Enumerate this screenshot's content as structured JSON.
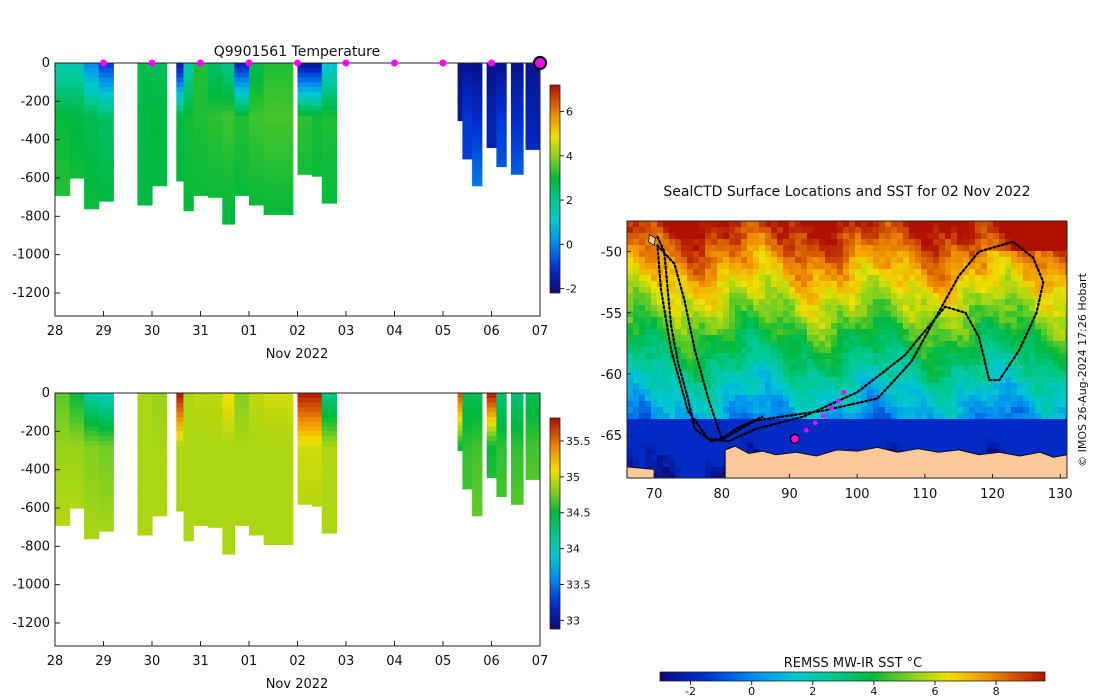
{
  "chart_data": [
    {
      "type": "heatmap",
      "title": "Q9901561  Temperature",
      "xlabel": "Nov 2022",
      "ylabel": "",
      "x_ticks": [
        "28",
        "29",
        "30",
        "31",
        "01",
        "02",
        "03",
        "04",
        "05",
        "06",
        "07"
      ],
      "y_ticks": [
        "0",
        "-200",
        "-400",
        "-600",
        "-800",
        "-1000",
        "-1200"
      ],
      "ylim": [
        -1320,
        0
      ],
      "colorbar": {
        "min": -2.2,
        "max": 7.2,
        "ticks": [
          "-2",
          "0",
          "2",
          "4",
          "6"
        ]
      },
      "profile_markers_days": [
        1,
        2,
        3,
        4,
        5,
        6,
        7,
        8,
        9,
        10
      ],
      "current_marker_day": 10,
      "profiles": [
        {
          "day": 0.0,
          "w": 0.3,
          "max_depth": 690,
          "surface": 1.5,
          "mid": 3.0,
          "deep": 3.3
        },
        {
          "day": 0.3,
          "w": 0.3,
          "max_depth": 600,
          "surface": 1.5,
          "mid": 2.9,
          "deep": 3.2
        },
        {
          "day": 0.6,
          "w": 0.3,
          "max_depth": 760,
          "surface": 0.0,
          "mid": 2.7,
          "deep": 3.1
        },
        {
          "day": 0.9,
          "w": 0.3,
          "max_depth": 720,
          "surface": -1.0,
          "mid": 2.5,
          "deep": 3.0
        },
        {
          "day": 1.7,
          "w": 0.3,
          "max_depth": 740,
          "surface": 2.8,
          "mid": 2.9,
          "deep": 2.9
        },
        {
          "day": 2.0,
          "w": 0.3,
          "max_depth": 640,
          "surface": 2.6,
          "mid": 3.0,
          "deep": 2.9
        },
        {
          "day": 2.5,
          "w": 0.15,
          "max_depth": 615,
          "surface": -1.8,
          "mid": 2.9,
          "deep": 3.0
        },
        {
          "day": 2.65,
          "w": 0.2,
          "max_depth": 770,
          "surface": 1.5,
          "mid": 3.1,
          "deep": 3.0
        },
        {
          "day": 2.85,
          "w": 0.3,
          "max_depth": 690,
          "surface": 3.2,
          "mid": 3.2,
          "deep": 3.0
        },
        {
          "day": 3.15,
          "w": 0.3,
          "max_depth": 700,
          "surface": 2.5,
          "mid": 3.3,
          "deep": 3.0
        },
        {
          "day": 3.45,
          "w": 0.25,
          "max_depth": 840,
          "surface": 2.0,
          "mid": 3.4,
          "deep": 3.0
        },
        {
          "day": 3.7,
          "w": 0.3,
          "max_depth": 690,
          "surface": -1.5,
          "mid": 3.2,
          "deep": 3.0
        },
        {
          "day": 4.0,
          "w": 0.3,
          "max_depth": 740,
          "surface": 2.8,
          "mid": 3.4,
          "deep": 3.0
        },
        {
          "day": 4.3,
          "w": 0.3,
          "max_depth": 790,
          "surface": 3.2,
          "mid": 3.5,
          "deep": 3.0
        },
        {
          "day": 4.6,
          "w": 0.3,
          "max_depth": 790,
          "surface": 3.2,
          "mid": 3.5,
          "deep": 3.0
        },
        {
          "day": 5.0,
          "w": 0.3,
          "max_depth": 580,
          "surface": -1.9,
          "mid": 3.3,
          "deep": 3.0
        },
        {
          "day": 5.3,
          "w": 0.2,
          "max_depth": 590,
          "surface": -1.9,
          "mid": 3.1,
          "deep": 3.0
        },
        {
          "day": 5.5,
          "w": 0.3,
          "max_depth": 730,
          "surface": 1.0,
          "mid": 3.2,
          "deep": 3.0
        },
        {
          "day": 8.3,
          "w": 0.2,
          "max_depth": 300,
          "surface": -2.0,
          "mid": -1.8,
          "deep": -1.5
        },
        {
          "day": 8.4,
          "w": 0.2,
          "max_depth": 500,
          "surface": -1.9,
          "mid": -1.0,
          "deep": -0.8
        },
        {
          "day": 8.6,
          "w": 0.2,
          "max_depth": 640,
          "surface": -2.0,
          "mid": -1.2,
          "deep": 0.3
        },
        {
          "day": 8.9,
          "w": 0.2,
          "max_depth": 440,
          "surface": -2.0,
          "mid": -1.5,
          "deep": -1.2
        },
        {
          "day": 9.1,
          "w": 0.2,
          "max_depth": 540,
          "surface": -1.9,
          "mid": -1.0,
          "deep": -0.2
        },
        {
          "day": 9.4,
          "w": 0.25,
          "max_depth": 580,
          "surface": -1.9,
          "mid": -1.2,
          "deep": 0.0
        },
        {
          "day": 9.7,
          "w": 0.3,
          "max_depth": 450,
          "surface": -1.9,
          "mid": -1.5,
          "deep": -1.0
        }
      ]
    },
    {
      "type": "heatmap",
      "title": "",
      "xlabel": "Nov 2022",
      "ylabel": "",
      "x_ticks": [
        "28",
        "29",
        "30",
        "31",
        "01",
        "02",
        "03",
        "04",
        "05",
        "06",
        "07"
      ],
      "y_ticks": [
        "0",
        "-200",
        "-400",
        "-600",
        "-800",
        "-1000",
        "-1200"
      ],
      "ylim": [
        -1320,
        0
      ],
      "colorbar": {
        "min": 32.88,
        "max": 35.82,
        "ticks": [
          "33",
          "33.5",
          "34",
          "34.5",
          "35",
          "35.5"
        ]
      },
      "profiles": [
        {
          "day": 0.0,
          "w": 0.3,
          "max_depth": 690,
          "surface": 34.7,
          "mid": 34.85,
          "deep": 34.95
        },
        {
          "day": 0.3,
          "w": 0.3,
          "max_depth": 600,
          "surface": 34.5,
          "mid": 34.85,
          "deep": 34.95
        },
        {
          "day": 0.6,
          "w": 0.3,
          "max_depth": 760,
          "surface": 34.1,
          "mid": 34.8,
          "deep": 34.9
        },
        {
          "day": 0.9,
          "w": 0.3,
          "max_depth": 720,
          "surface": 34.0,
          "mid": 34.75,
          "deep": 34.9
        },
        {
          "day": 1.7,
          "w": 0.3,
          "max_depth": 740,
          "surface": 34.9,
          "mid": 34.9,
          "deep": 34.9
        },
        {
          "day": 2.0,
          "w": 0.3,
          "max_depth": 640,
          "surface": 34.85,
          "mid": 34.9,
          "deep": 34.9
        },
        {
          "day": 2.5,
          "w": 0.15,
          "max_depth": 615,
          "surface": 35.8,
          "mid": 34.9,
          "deep": 34.9
        },
        {
          "day": 2.65,
          "w": 0.2,
          "max_depth": 770,
          "surface": 34.9,
          "mid": 34.9,
          "deep": 34.9
        },
        {
          "day": 2.85,
          "w": 0.3,
          "max_depth": 690,
          "surface": 34.95,
          "mid": 34.9,
          "deep": 34.9
        },
        {
          "day": 3.15,
          "w": 0.3,
          "max_depth": 700,
          "surface": 34.95,
          "mid": 34.9,
          "deep": 34.9
        },
        {
          "day": 3.45,
          "w": 0.25,
          "max_depth": 840,
          "surface": 35.1,
          "mid": 34.9,
          "deep": 34.9
        },
        {
          "day": 3.7,
          "w": 0.3,
          "max_depth": 690,
          "surface": 34.8,
          "mid": 34.9,
          "deep": 34.9
        },
        {
          "day": 4.0,
          "w": 0.3,
          "max_depth": 740,
          "surface": 34.95,
          "mid": 34.9,
          "deep": 34.9
        },
        {
          "day": 4.3,
          "w": 0.3,
          "max_depth": 790,
          "surface": 35.0,
          "mid": 34.9,
          "deep": 34.9
        },
        {
          "day": 4.6,
          "w": 0.3,
          "max_depth": 790,
          "surface": 35.0,
          "mid": 34.9,
          "deep": 34.9
        },
        {
          "day": 5.0,
          "w": 0.3,
          "max_depth": 580,
          "surface": 35.8,
          "mid": 35.0,
          "deep": 34.9
        },
        {
          "day": 5.3,
          "w": 0.2,
          "max_depth": 590,
          "surface": 35.8,
          "mid": 35.0,
          "deep": 34.9
        },
        {
          "day": 5.5,
          "w": 0.3,
          "max_depth": 730,
          "surface": 34.2,
          "mid": 34.9,
          "deep": 34.9
        },
        {
          "day": 8.3,
          "w": 0.2,
          "max_depth": 300,
          "surface": 35.6,
          "mid": 34.5,
          "deep": 34.6
        },
        {
          "day": 8.4,
          "w": 0.2,
          "max_depth": 500,
          "surface": 34.4,
          "mid": 34.6,
          "deep": 34.7
        },
        {
          "day": 8.6,
          "w": 0.2,
          "max_depth": 640,
          "surface": 34.4,
          "mid": 34.65,
          "deep": 34.75
        },
        {
          "day": 8.9,
          "w": 0.2,
          "max_depth": 440,
          "surface": 35.8,
          "mid": 34.5,
          "deep": 34.7
        },
        {
          "day": 9.1,
          "w": 0.2,
          "max_depth": 540,
          "surface": 34.3,
          "mid": 34.6,
          "deep": 34.7
        },
        {
          "day": 9.4,
          "w": 0.25,
          "max_depth": 580,
          "surface": 34.3,
          "mid": 34.6,
          "deep": 34.75
        },
        {
          "day": 9.7,
          "w": 0.3,
          "max_depth": 450,
          "surface": 34.4,
          "mid": 34.65,
          "deep": 34.75
        }
      ]
    },
    {
      "type": "heatmap",
      "title": "SealCTD Surface Locations and SST for 02 Nov 2022",
      "xlabel": "",
      "ylabel": "",
      "x_ticks": [
        "70",
        "80",
        "90",
        "100",
        "110",
        "120",
        "130"
      ],
      "y_ticks": [
        "-50",
        "-55",
        "-60",
        "-65"
      ],
      "xlim": [
        66,
        131
      ],
      "ylim": [
        -68.5,
        -47.5
      ],
      "colorbar_label": "REMSS MW-IR SST °C",
      "colorbar": {
        "min": -3,
        "max": 9.6,
        "ticks": [
          "-2",
          "0",
          "2",
          "4",
          "6",
          "8"
        ]
      },
      "credit": "© IMOS 26-Aug-2024 17:26 Hobart",
      "tracks": [
        [
          [
            70.5,
            -48.8
          ],
          [
            71.5,
            -50
          ],
          [
            72,
            -53
          ],
          [
            72.5,
            -56
          ],
          [
            73.5,
            -59
          ],
          [
            75,
            -62
          ],
          [
            76,
            -64.5
          ],
          [
            78.5,
            -65.5
          ],
          [
            80.5,
            -65.2
          ],
          [
            85,
            -63.8
          ],
          [
            95,
            -63
          ],
          [
            103,
            -62
          ],
          [
            108,
            -59
          ],
          [
            112,
            -55
          ],
          [
            115,
            -52
          ],
          [
            118,
            -50
          ],
          [
            123,
            -49.2
          ],
          [
            126,
            -50.5
          ],
          [
            127.5,
            -52.5
          ],
          [
            126.5,
            -55
          ],
          [
            124,
            -58
          ],
          [
            121,
            -60.5
          ],
          [
            119.5,
            -60.5
          ],
          [
            118,
            -57
          ],
          [
            116,
            -55
          ],
          [
            113,
            -54.5
          ],
          [
            107,
            -58.5
          ],
          [
            100,
            -61.5
          ],
          [
            92,
            -63.5
          ],
          [
            85,
            -64.5
          ],
          [
            81,
            -65.5
          ],
          [
            78,
            -65.3
          ],
          [
            75,
            -63
          ],
          [
            72.5,
            -58
          ],
          [
            71,
            -53
          ],
          [
            70.5,
            -49.5
          ]
        ],
        [
          [
            70.5,
            -49.5
          ],
          [
            73,
            -51
          ],
          [
            74.5,
            -54
          ],
          [
            76,
            -58
          ],
          [
            78,
            -62
          ],
          [
            80,
            -65.3
          ],
          [
            82,
            -64.5
          ],
          [
            86,
            -63.5
          ]
        ]
      ],
      "recent_points": [
        [
          91,
          -65.2
        ],
        [
          92.5,
          -64.6
        ],
        [
          93.8,
          -64.0
        ],
        [
          95,
          -63.4
        ],
        [
          96.2,
          -62.8
        ],
        [
          97.2,
          -62.2
        ],
        [
          98,
          -61.5
        ]
      ],
      "current_point": [
        90.8,
        -65.3
      ]
    }
  ]
}
